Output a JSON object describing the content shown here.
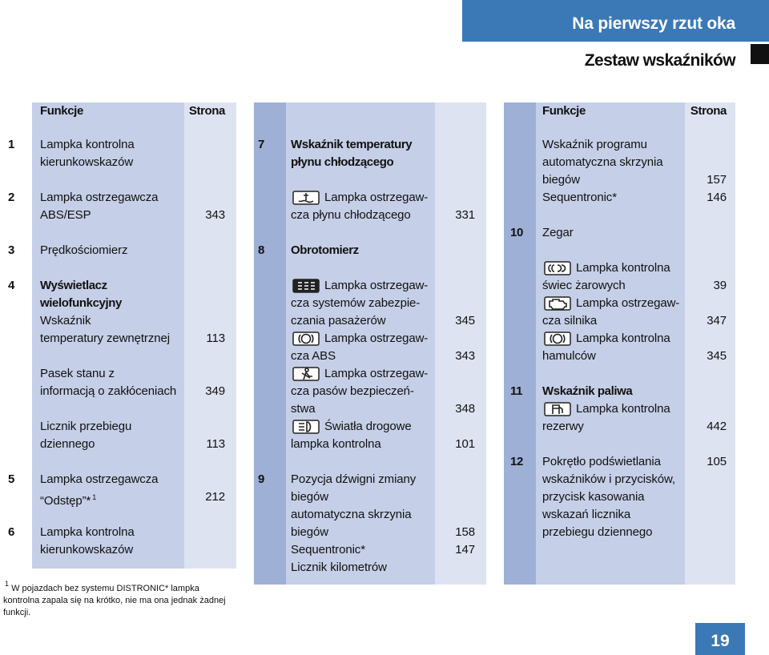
{
  "header": {
    "section": "Na pierwszy rzut oka",
    "title": "Zestaw wskaźników"
  },
  "columns": [
    {
      "header": {
        "functions": "Funkcje",
        "page": "Strona"
      },
      "blocks": [
        {
          "number": 1,
          "lines": [
            {
              "text": "Lampka kontrolna"
            },
            {
              "text": "kierunkowskazów"
            }
          ]
        },
        {
          "number": 2,
          "lines": [
            {
              "text": "Lampka ostrzegawcza"
            },
            {
              "text": "ABS/ESP",
              "page": 343
            }
          ]
        },
        {
          "number": 3,
          "lines": [
            {
              "text": "Prędkościomierz"
            }
          ]
        },
        {
          "number": 4,
          "lines": [
            {
              "text": "Wyświetlacz",
              "bold": true
            },
            {
              "text": "wielofunkcyjny",
              "bold": true
            },
            {
              "text": "Wskaźnik"
            },
            {
              "text": "temperatury zewnętrznej",
              "page": 113
            }
          ]
        },
        {
          "lines": [
            {
              "text": "Pasek stanu z"
            },
            {
              "text": "informacją o zakłóceniach",
              "page": 349
            }
          ]
        },
        {
          "lines": [
            {
              "text": "Licznik przebiegu"
            },
            {
              "text": "dziennego",
              "page": 113
            }
          ]
        },
        {
          "number": 5,
          "lines": [
            {
              "text": "Lampka ostrzegawcza"
            },
            {
              "text": "“Odstęp”*",
              "ref": "1",
              "page": 212
            }
          ]
        },
        {
          "number": 6,
          "lines": [
            {
              "text": "Lampka kontrolna"
            },
            {
              "text": "kierunkowskazów"
            }
          ]
        }
      ]
    },
    {
      "blocks": [
        {
          "number": 7,
          "lines": [
            {
              "text": "Wskaźnik temperatury",
              "bold": true
            },
            {
              "text": "płynu chłodzącego",
              "bold": true
            }
          ]
        },
        {
          "lines": [
            {
              "text": "Lampka ostrzegaw-"
            },
            {
              "text": "cza płynu chłodzącego",
              "page": 331
            }
          ]
        },
        {
          "number": 8,
          "lines": [
            {
              "text": "Obrotomierz",
              "bold": true
            }
          ]
        },
        {
          "lines": [
            {
              "text": "Lampka ostrzegaw-"
            },
            {
              "text": "cza systemów zabezpie-"
            },
            {
              "text": "czania pasażerów",
              "page": 345
            },
            {
              "text": "Lampka ostrzegaw-"
            },
            {
              "text": "cza ABS",
              "page": 343
            },
            {
              "text": "Lampka ostrzegaw-"
            },
            {
              "text": "cza pasów bezpieczeń-"
            },
            {
              "text": "stwa",
              "page": 348
            },
            {
              "text": "Światła drogowe"
            },
            {
              "text": "lampka kontrolna",
              "page": 101
            }
          ]
        },
        {
          "number": 9,
          "lines": [
            {
              "text": "Pozycja dźwigni zmiany"
            },
            {
              "text": "biegów"
            },
            {
              "text": "automatyczna skrzynia"
            },
            {
              "text": "biegów",
              "page": 158
            },
            {
              "text": "Sequentronic*",
              "page": 147
            },
            {
              "text": "Licznik kilometrów"
            }
          ]
        }
      ]
    },
    {
      "header": {
        "functions": "Funkcje",
        "page": "Strona"
      },
      "blocks": [
        {
          "lines": [
            {
              "text": "Wskaźnik programu"
            },
            {
              "text": "automatyczna skrzynia"
            },
            {
              "text": "biegów",
              "page": 157
            },
            {
              "text": "Sequentronic*",
              "page": 146
            }
          ]
        },
        {
          "number": 10,
          "lines": [
            {
              "text": "Zegar"
            }
          ]
        },
        {
          "lines": [
            {
              "text": "Lampka kontrolna"
            },
            {
              "text": "świec żarowych",
              "page": 39
            },
            {
              "text": "Lampka ostrzegaw-"
            },
            {
              "text": "cza silnika",
              "page": 347
            },
            {
              "text": "Lampka kontrolna"
            },
            {
              "text": "hamulców",
              "page": 345
            }
          ]
        },
        {
          "number": 11,
          "lines": [
            {
              "text": "Wskaźnik paliwa",
              "bold": true
            },
            {
              "text": "Lampka kontrolna"
            },
            {
              "text": "rezerwy",
              "page": 442
            }
          ]
        },
        {
          "number": 12,
          "lines": [
            {
              "text": "Pokrętło podświetlania",
              "page": 105
            },
            {
              "text": "wskaźników i przycisków,"
            },
            {
              "text": "przycisk kasowania"
            },
            {
              "text": "wskazań licznika"
            },
            {
              "text": "przebiegu dziennego"
            }
          ]
        }
      ]
    }
  ],
  "footnote": {
    "marker": "1",
    "text": "W pojazdach bez systemu DISTRONIC* lampka kontrolna zapala się na krótko, nie ma ona jednak żadnej funkcji."
  },
  "page_number": 19
}
